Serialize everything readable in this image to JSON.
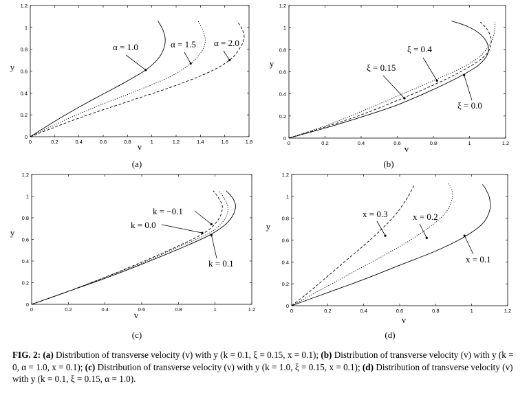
{
  "caption": {
    "fig": "FIG. 2:",
    "a_tag": "(a)",
    "a_text": " Distribution of transverse velocity (v) with y (k = 0.1, ξ = 0.15, x = 0.1); ",
    "b_tag": "(b)",
    "b_text": " Distribution of transverse velocity (v) with y (k = 0, α = 1.0, x = 0.1); ",
    "c_tag": "(c)",
    "c_text": " Distribution of transverse velocity (v) with y (k = 1.0, ξ = 0.15, x = 0.1); ",
    "d_tag": "(d)",
    "d_text": " Distribution of transverse velocity (v) with y (k = 0.1, ξ = 0.15, α = 1.0)."
  },
  "chart_data": [
    {
      "id": "a",
      "panel_label": "(a)",
      "type": "line",
      "xlabel": "v",
      "ylabel": "y",
      "xlim": [
        0,
        1.8
      ],
      "ylim": [
        0,
        1.2
      ],
      "xticks": [
        "0",
        "0.2",
        "0.4",
        "0.6",
        "0.8",
        "1",
        "1.2",
        "1.4",
        "1.6",
        "1.8"
      ],
      "yticks": [
        "0",
        "0.2",
        "0.4",
        "0.6",
        "0.8",
        "1",
        "1.2"
      ],
      "series": [
        {
          "name": "α = 1.0",
          "style": "solid",
          "points": [
            [
              0,
              0
            ],
            [
              0.2,
              0.14
            ],
            [
              0.4,
              0.27
            ],
            [
              0.6,
              0.39
            ],
            [
              0.8,
              0.51
            ],
            [
              0.95,
              0.61
            ],
            [
              1.05,
              0.71
            ],
            [
              1.1,
              0.81
            ],
            [
              1.11,
              0.9
            ],
            [
              1.09,
              0.98
            ],
            [
              1.05,
              1.06
            ]
          ]
        },
        {
          "name": "α = 1.5",
          "style": "dotted",
          "points": [
            [
              0,
              0
            ],
            [
              0.3,
              0.16
            ],
            [
              0.6,
              0.3
            ],
            [
              0.9,
              0.43
            ],
            [
              1.15,
              0.55
            ],
            [
              1.32,
              0.67
            ],
            [
              1.41,
              0.78
            ],
            [
              1.44,
              0.88
            ],
            [
              1.42,
              0.97
            ],
            [
              1.38,
              1.06
            ]
          ]
        },
        {
          "name": "α = 2.0",
          "style": "dashed",
          "points": [
            [
              0,
              0
            ],
            [
              0.4,
              0.17
            ],
            [
              0.8,
              0.32
            ],
            [
              1.15,
              0.45
            ],
            [
              1.45,
              0.58
            ],
            [
              1.64,
              0.7
            ],
            [
              1.73,
              0.82
            ],
            [
              1.76,
              0.91
            ],
            [
              1.74,
              0.99
            ],
            [
              1.7,
              1.06
            ]
          ]
        }
      ]
    },
    {
      "id": "b",
      "panel_label": "(b)",
      "type": "line",
      "xlabel": "v",
      "ylabel": "y",
      "xlim": [
        0,
        1.2
      ],
      "ylim": [
        0,
        1.2
      ],
      "xticks": [
        "0",
        "0.2",
        "0.4",
        "0.6",
        "0.8",
        "1",
        "1.2"
      ],
      "yticks": [
        "0",
        "0.2",
        "0.4",
        "0.6",
        "0.8",
        "1",
        "1.2"
      ],
      "series": [
        {
          "name": "ξ = 0.0",
          "style": "solid",
          "points": [
            [
              0,
              0
            ],
            [
              0.2,
              0.09
            ],
            [
              0.4,
              0.19
            ],
            [
              0.6,
              0.3
            ],
            [
              0.8,
              0.44
            ],
            [
              0.95,
              0.56
            ],
            [
              1.05,
              0.66
            ],
            [
              1.1,
              0.76
            ],
            [
              1.1,
              0.85
            ],
            [
              1.06,
              0.94
            ],
            [
              0.99,
              1.01
            ],
            [
              0.9,
              1.06
            ]
          ]
        },
        {
          "name": "ξ = 0.15",
          "style": "dashed",
          "points": [
            [
              0,
              0
            ],
            [
              0.2,
              0.1
            ],
            [
              0.4,
              0.21
            ],
            [
              0.6,
              0.34
            ],
            [
              0.8,
              0.48
            ],
            [
              0.95,
              0.6
            ],
            [
              1.06,
              0.71
            ],
            [
              1.11,
              0.8
            ],
            [
              1.12,
              0.89
            ],
            [
              1.1,
              0.98
            ],
            [
              1.06,
              1.05
            ]
          ]
        },
        {
          "name": "ξ = 0.4",
          "style": "dotted",
          "points": [
            [
              0,
              0
            ],
            [
              0.2,
              0.11
            ],
            [
              0.4,
              0.24
            ],
            [
              0.6,
              0.38
            ],
            [
              0.8,
              0.52
            ],
            [
              0.95,
              0.63
            ],
            [
              1.05,
              0.73
            ],
            [
              1.1,
              0.82
            ],
            [
              1.13,
              0.91
            ],
            [
              1.14,
              0.99
            ],
            [
              1.14,
              1.05
            ]
          ]
        }
      ]
    },
    {
      "id": "c",
      "panel_label": "(c)",
      "type": "line",
      "xlabel": "v",
      "ylabel": "y",
      "xlim": [
        0,
        1.2
      ],
      "ylim": [
        0,
        1.2
      ],
      "xticks": [
        "0",
        "0.2",
        "0.4",
        "0.6",
        "0.8",
        "1",
        "1.2"
      ],
      "yticks": [
        "0",
        "0.2",
        "0.4",
        "0.6",
        "0.8",
        "1",
        "1.2"
      ],
      "series": [
        {
          "name": "k = −0.1",
          "style": "dashed",
          "points": [
            [
              0,
              0
            ],
            [
              0.2,
              0.12
            ],
            [
              0.4,
              0.25
            ],
            [
              0.6,
              0.39
            ],
            [
              0.8,
              0.54
            ],
            [
              0.95,
              0.67
            ],
            [
              1.02,
              0.79
            ],
            [
              1.04,
              0.9
            ],
            [
              1.02,
              0.98
            ],
            [
              0.99,
              1.05
            ]
          ]
        },
        {
          "name": "k = 0.0",
          "style": "dotted",
          "points": [
            [
              0,
              0
            ],
            [
              0.2,
              0.12
            ],
            [
              0.4,
              0.25
            ],
            [
              0.6,
              0.38
            ],
            [
              0.8,
              0.53
            ],
            [
              0.97,
              0.66
            ],
            [
              1.05,
              0.78
            ],
            [
              1.07,
              0.89
            ],
            [
              1.05,
              0.98
            ],
            [
              1.02,
              1.05
            ]
          ]
        },
        {
          "name": "k = 0.1",
          "style": "solid",
          "points": [
            [
              0,
              0
            ],
            [
              0.2,
              0.12
            ],
            [
              0.4,
              0.24
            ],
            [
              0.6,
              0.37
            ],
            [
              0.8,
              0.51
            ],
            [
              0.97,
              0.64
            ],
            [
              1.07,
              0.76
            ],
            [
              1.11,
              0.88
            ],
            [
              1.1,
              0.97
            ],
            [
              1.06,
              1.05
            ]
          ]
        }
      ]
    },
    {
      "id": "d",
      "panel_label": "(d)",
      "type": "line",
      "xlabel": "v",
      "ylabel": "y",
      "xlim": [
        0,
        1.2
      ],
      "ylim": [
        0,
        1.2
      ],
      "xticks": [
        "0",
        "0.2",
        "0.4",
        "0.6",
        "0.8",
        "1",
        "1.2"
      ],
      "yticks": [
        "0",
        "0.2",
        "0.4",
        "0.6",
        "0.8",
        "1",
        "1.2"
      ],
      "series": [
        {
          "name": "x = 0.1",
          "style": "solid",
          "points": [
            [
              0,
              0
            ],
            [
              0.2,
              0.12
            ],
            [
              0.4,
              0.24
            ],
            [
              0.6,
              0.37
            ],
            [
              0.8,
              0.5
            ],
            [
              0.96,
              0.63
            ],
            [
              1.06,
              0.75
            ],
            [
              1.1,
              0.87
            ],
            [
              1.1,
              0.98
            ],
            [
              1.08,
              1.06
            ],
            [
              1.06,
              1.11
            ]
          ]
        },
        {
          "name": "x = 0.2",
          "style": "dotted",
          "points": [
            [
              0,
              0
            ],
            [
              0.2,
              0.18
            ],
            [
              0.4,
              0.36
            ],
            [
              0.6,
              0.54
            ],
            [
              0.75,
              0.7
            ],
            [
              0.85,
              0.84
            ],
            [
              0.89,
              0.97
            ],
            [
              0.89,
              1.06
            ],
            [
              0.87,
              1.12
            ]
          ]
        },
        {
          "name": "x = 0.3",
          "style": "dashed",
          "points": [
            [
              0,
              0
            ],
            [
              0.1,
              0.13
            ],
            [
              0.2,
              0.27
            ],
            [
              0.3,
              0.41
            ],
            [
              0.4,
              0.55
            ],
            [
              0.5,
              0.7
            ],
            [
              0.58,
              0.84
            ],
            [
              0.64,
              0.98
            ],
            [
              0.68,
              1.1
            ]
          ]
        }
      ]
    }
  ]
}
